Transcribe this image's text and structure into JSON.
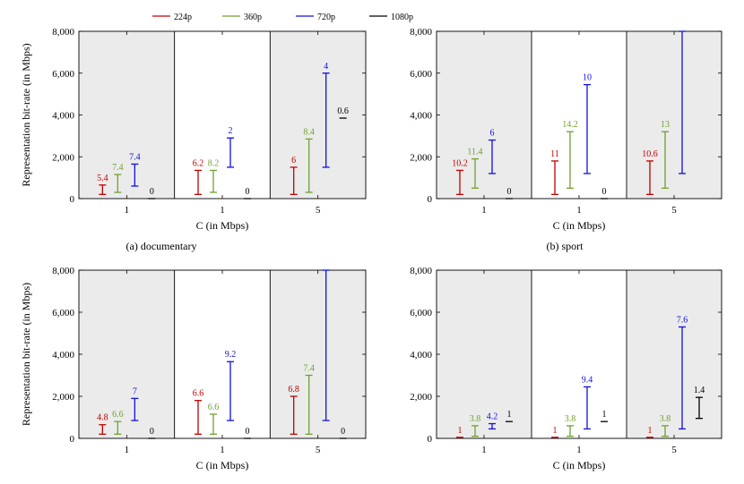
{
  "legend": [
    {
      "name": "224p",
      "color": "#c00000"
    },
    {
      "name": "360p",
      "color": "#70a030"
    },
    {
      "name": "720p",
      "color": "#1010e0"
    },
    {
      "name": "1080p",
      "color": "#000000"
    }
  ],
  "chart_data": [
    {
      "type": "range-bar",
      "caption": "(a) documentary",
      "xlabel": "C (in Mbps)",
      "ylabel": "Representation bit-rate (in Mbps)",
      "ylim": [
        0,
        8000
      ],
      "yticks": [
        "0",
        "2,000",
        "4,000",
        "6,000",
        "8,000"
      ],
      "groups": [
        {
          "label": "1",
          "shaded": true,
          "bars": [
            {
              "series": "224p",
              "low": 200,
              "high": 650,
              "label": "5.4"
            },
            {
              "series": "360p",
              "low": 300,
              "high": 1150,
              "label": "7.4"
            },
            {
              "series": "720p",
              "low": 600,
              "high": 1650,
              "label": "7.4"
            },
            {
              "series": "1080p",
              "low": 0,
              "high": 0,
              "label": "0"
            }
          ]
        },
        {
          "label": "1",
          "shaded": false,
          "bars": [
            {
              "series": "224p",
              "low": 200,
              "high": 1350,
              "label": "6.2"
            },
            {
              "series": "360p",
              "low": 300,
              "high": 1350,
              "label": "8.2"
            },
            {
              "series": "720p",
              "low": 1500,
              "high": 2900,
              "label": "2"
            },
            {
              "series": "1080p",
              "low": 0,
              "high": 0,
              "label": "0"
            }
          ]
        },
        {
          "label": "5",
          "shaded": true,
          "bars": [
            {
              "series": "224p",
              "low": 200,
              "high": 1500,
              "label": "6"
            },
            {
              "series": "360p",
              "low": 300,
              "high": 2850,
              "label": "8.4"
            },
            {
              "series": "720p",
              "low": 1500,
              "high": 6000,
              "label": "4"
            },
            {
              "series": "1080p",
              "low": 3850,
              "high": 3850,
              "label": "0.6"
            }
          ]
        }
      ]
    },
    {
      "type": "range-bar",
      "caption": "(b) sport",
      "xlabel": "C (in Mbps)",
      "ylabel": "",
      "ylim": [
        0,
        8000
      ],
      "yticks": [
        "0",
        "2,000",
        "4,000",
        "6,000",
        "8,000"
      ],
      "groups": [
        {
          "label": "1",
          "shaded": true,
          "bars": [
            {
              "series": "224p",
              "low": 200,
              "high": 1350,
              "label": "10.2"
            },
            {
              "series": "360p",
              "low": 500,
              "high": 1900,
              "label": "11.4"
            },
            {
              "series": "720p",
              "low": 1200,
              "high": 2800,
              "label": "6"
            },
            {
              "series": "1080p",
              "low": 0,
              "high": 0,
              "label": "0"
            }
          ]
        },
        {
          "label": "1",
          "shaded": false,
          "bars": [
            {
              "series": "224p",
              "low": 200,
              "high": 1800,
              "label": "11"
            },
            {
              "series": "360p",
              "low": 500,
              "high": 3200,
              "label": "14.2"
            },
            {
              "series": "720p",
              "low": 1200,
              "high": 5450,
              "label": "10"
            },
            {
              "series": "1080p",
              "low": 0,
              "high": 0,
              "label": "0"
            }
          ]
        },
        {
          "label": "5",
          "shaded": true,
          "bars": [
            {
              "series": "224p",
              "low": 200,
              "high": 1800,
              "label": "10.6"
            },
            {
              "series": "360p",
              "low": 500,
              "high": 3200,
              "label": "13"
            },
            {
              "series": "720p",
              "low": 1200,
              "high": 8000,
              "label": ""
            },
            {
              "series": "1080p",
              "low": null,
              "high": null,
              "label": ""
            }
          ]
        }
      ]
    },
    {
      "type": "range-bar",
      "caption": "",
      "xlabel": "C (in Mbps)",
      "ylabel": "Representation bit-rate (in Mbps)",
      "ylim": [
        0,
        8000
      ],
      "yticks": [
        "0",
        "2,000",
        "4,000",
        "6,000",
        "8,000"
      ],
      "groups": [
        {
          "label": "1",
          "shaded": true,
          "bars": [
            {
              "series": "224p",
              "low": 200,
              "high": 650,
              "label": "4.8"
            },
            {
              "series": "360p",
              "low": 200,
              "high": 800,
              "label": "6.6"
            },
            {
              "series": "720p",
              "low": 850,
              "high": 1900,
              "label": "7"
            },
            {
              "series": "1080p",
              "low": 0,
              "high": 0,
              "label": "0"
            }
          ]
        },
        {
          "label": "1",
          "shaded": false,
          "bars": [
            {
              "series": "224p",
              "low": 200,
              "high": 1800,
              "label": "6.6"
            },
            {
              "series": "360p",
              "low": 200,
              "high": 1150,
              "label": "6.6"
            },
            {
              "series": "720p",
              "low": 850,
              "high": 3650,
              "label": "9.2"
            },
            {
              "series": "1080p",
              "low": 0,
              "high": 0,
              "label": "0"
            }
          ]
        },
        {
          "label": "5",
          "shaded": true,
          "bars": [
            {
              "series": "224p",
              "low": 200,
              "high": 2000,
              "label": "6.8"
            },
            {
              "series": "360p",
              "low": 200,
              "high": 3000,
              "label": "7.4"
            },
            {
              "series": "720p",
              "low": 850,
              "high": 8000,
              "label": ""
            },
            {
              "series": "1080p",
              "low": 0,
              "high": 0,
              "label": "0"
            }
          ]
        }
      ]
    },
    {
      "type": "range-bar",
      "caption": "",
      "xlabel": "C (in Mbps)",
      "ylabel": "",
      "ylim": [
        0,
        8000
      ],
      "yticks": [
        "0",
        "2,000",
        "4,000",
        "6,000",
        "8,000"
      ],
      "groups": [
        {
          "label": "1",
          "shaded": true,
          "bars": [
            {
              "series": "224p",
              "low": 50,
              "high": 50,
              "label": "1"
            },
            {
              "series": "360p",
              "low": 100,
              "high": 600,
              "label": "3.8"
            },
            {
              "series": "720p",
              "low": 450,
              "high": 700,
              "label": "4.2"
            },
            {
              "series": "1080p",
              "low": 800,
              "high": 800,
              "label": "1"
            }
          ]
        },
        {
          "label": "1",
          "shaded": false,
          "bars": [
            {
              "series": "224p",
              "low": 50,
              "high": 50,
              "label": "1"
            },
            {
              "series": "360p",
              "low": 100,
              "high": 600,
              "label": "3.8"
            },
            {
              "series": "720p",
              "low": 450,
              "high": 2450,
              "label": "9.4"
            },
            {
              "series": "1080p",
              "low": 800,
              "high": 800,
              "label": "1"
            }
          ]
        },
        {
          "label": "5",
          "shaded": true,
          "bars": [
            {
              "series": "224p",
              "low": 50,
              "high": 50,
              "label": "1"
            },
            {
              "series": "360p",
              "low": 100,
              "high": 600,
              "label": "3.8"
            },
            {
              "series": "720p",
              "low": 450,
              "high": 5300,
              "label": "7.6"
            },
            {
              "series": "1080p",
              "low": 950,
              "high": 1950,
              "label": "1.4"
            }
          ]
        }
      ]
    }
  ]
}
